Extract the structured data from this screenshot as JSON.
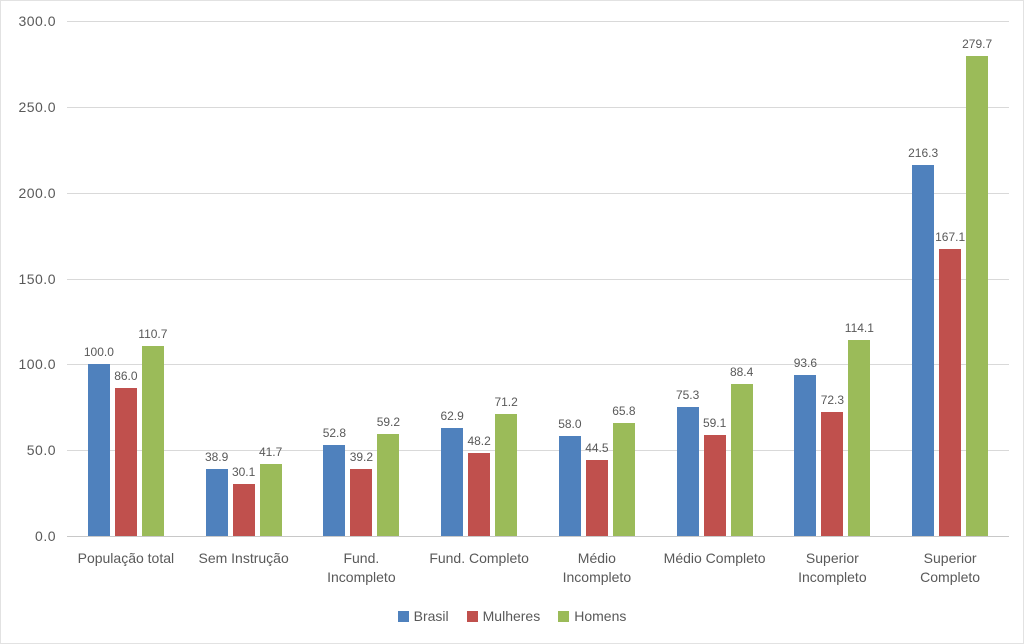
{
  "chart_data": {
    "type": "bar",
    "title": "",
    "xlabel": "",
    "ylabel": "",
    "categories": [
      "População total",
      "Sem Instrução",
      "Fund.\nIncompleto",
      "Fund. Completo",
      "Médio\nIncompleto",
      "Médio Completo",
      "Superior\nIncompleto",
      "Superior\nCompleto"
    ],
    "series": [
      {
        "name": "Brasil",
        "color": "#4F81BD",
        "values": [
          100.0,
          38.9,
          52.8,
          62.9,
          58.0,
          75.3,
          93.6,
          216.3
        ]
      },
      {
        "name": "Mulheres",
        "color": "#C0504D",
        "values": [
          86.0,
          30.1,
          39.2,
          48.2,
          44.5,
          59.1,
          72.3,
          167.1
        ]
      },
      {
        "name": "Homens",
        "color": "#9BBB59",
        "values": [
          110.7,
          41.7,
          59.2,
          71.2,
          65.8,
          88.4,
          114.1,
          279.7
        ]
      }
    ],
    "ylim": [
      0,
      300
    ],
    "ytick_step": 50,
    "ytick_labels": [
      "0.0",
      "50.0",
      "100.0",
      "150.0",
      "200.0",
      "250.0",
      "300.0"
    ],
    "value_labels": true,
    "value_label_decimals": 1,
    "grid": true,
    "legend_position": "bottom"
  },
  "colors": {
    "background": "#FFFFFF",
    "border": "#E2E2E2",
    "gridline": "#D9D9D9",
    "axis_line": "#C8C8C8",
    "text": "#595959"
  }
}
